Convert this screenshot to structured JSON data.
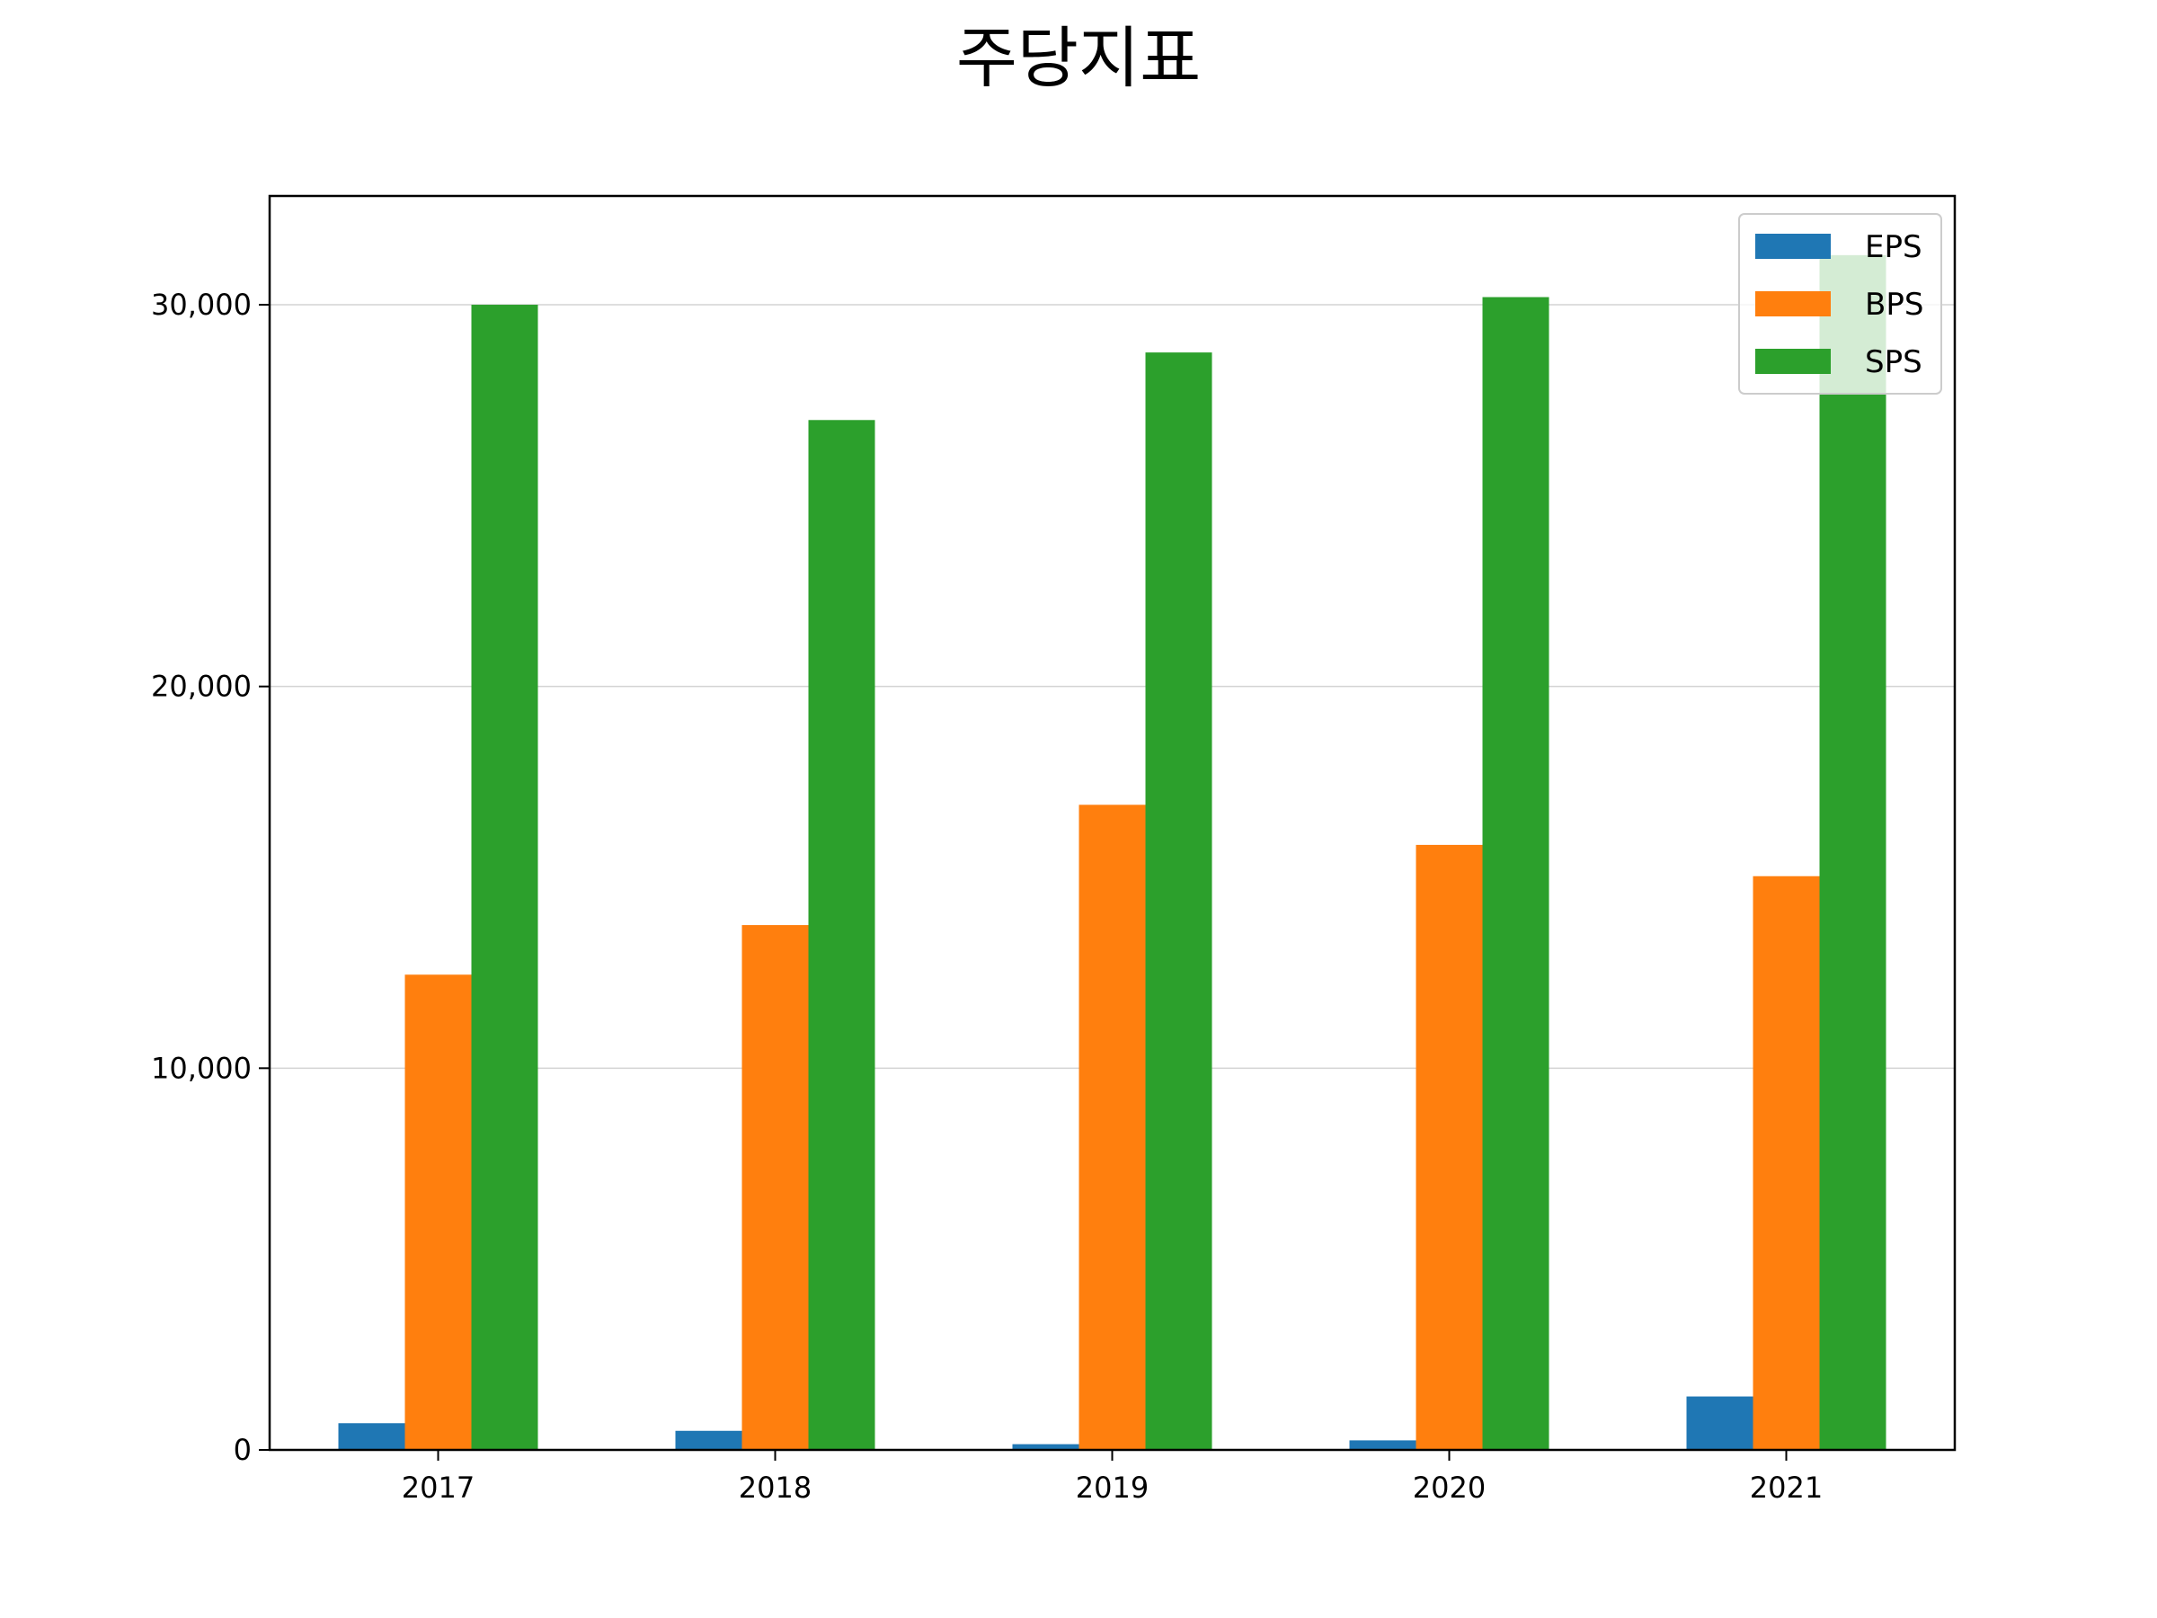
{
  "chart_data": {
    "type": "bar",
    "title": "주당지표",
    "categories": [
      "2017",
      "2018",
      "2019",
      "2020",
      "2021"
    ],
    "series": [
      {
        "name": "EPS",
        "color": "#1f77b4",
        "values": [
          700,
          500,
          150,
          250,
          1400
        ]
      },
      {
        "name": "BPS",
        "color": "#ff7f0e",
        "values": [
          12450,
          13750,
          16900,
          15850,
          15030
        ]
      },
      {
        "name": "SPS",
        "color": "#2ca02c",
        "values": [
          30000,
          26980,
          28750,
          30200,
          31300
        ]
      }
    ],
    "ylim": [
      0,
      32850
    ],
    "yticks": [
      {
        "value": 0,
        "label": "0"
      },
      {
        "value": 10000,
        "label": "10,000"
      },
      {
        "value": 20000,
        "label": "20,000"
      },
      {
        "value": 30000,
        "label": "30,000"
      }
    ],
    "grid": "horizontal",
    "legend_position": "top-right",
    "xlabel": "",
    "ylabel": ""
  }
}
